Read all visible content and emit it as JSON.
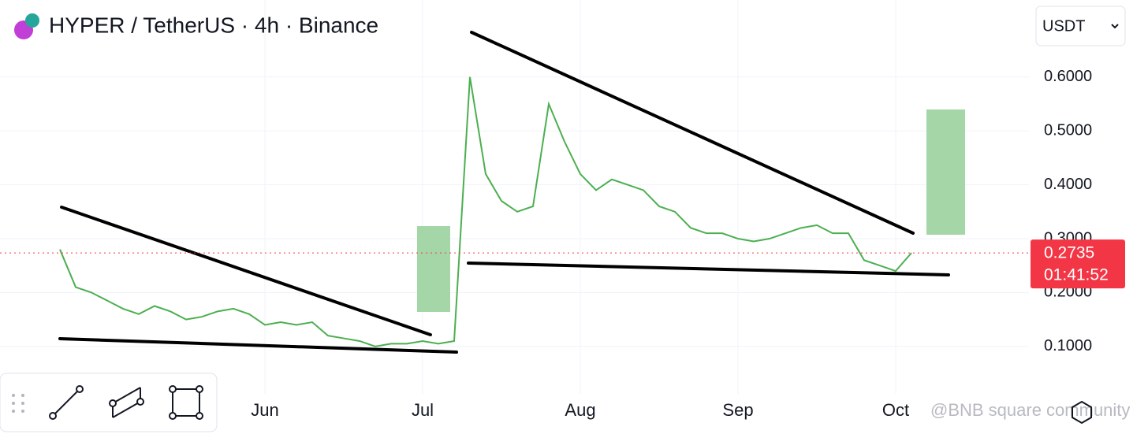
{
  "chart_data": {
    "type": "line",
    "title": "HYPER / TetherUS · 4h · Binance",
    "currency": "USDT",
    "categories": [
      null,
      null,
      null,
      null,
      null,
      null,
      null,
      null,
      null,
      null,
      null,
      null,
      null,
      "Jun",
      null,
      null,
      null,
      null,
      null,
      null,
      null,
      null,
      null,
      "Jul",
      null,
      null,
      null,
      null,
      null,
      null,
      null,
      null,
      null,
      "Aug",
      null,
      null,
      null,
      null,
      null,
      null,
      null,
      null,
      null,
      "Sep",
      null,
      null,
      null,
      null,
      null,
      null,
      null,
      null,
      null,
      "Oct",
      null
    ],
    "series": [
      {
        "name": "HYPER",
        "color": "#4caf50",
        "values": [
          0.28,
          0.21,
          0.2,
          0.185,
          0.17,
          0.16,
          0.175,
          0.165,
          0.15,
          0.155,
          0.165,
          0.17,
          0.16,
          0.14,
          0.145,
          0.14,
          0.145,
          0.12,
          0.115,
          0.11,
          0.1,
          0.105,
          0.105,
          0.11,
          0.105,
          0.11,
          0.6,
          0.42,
          0.37,
          0.35,
          0.36,
          0.55,
          0.48,
          0.42,
          0.39,
          0.41,
          0.4,
          0.39,
          0.36,
          0.35,
          0.32,
          0.31,
          0.31,
          0.3,
          0.295,
          0.3,
          0.31,
          0.32,
          0.325,
          0.31,
          0.31,
          0.26,
          0.25,
          0.24,
          0.2735
        ]
      }
    ],
    "ylim": [
      0.012,
      0.743
    ],
    "yticks": [
      {
        "value": 0.1,
        "label": "0.1000"
      },
      {
        "value": 0.2,
        "label": "0.2000"
      },
      {
        "value": 0.3,
        "label": "0.3000"
      },
      {
        "value": 0.4,
        "label": "0.4000"
      },
      {
        "value": 0.5,
        "label": "0.5000"
      },
      {
        "value": 0.6,
        "label": "0.6000"
      }
    ],
    "grid": true,
    "last_price": {
      "value": 0.2735,
      "label": "0.2735"
    },
    "countdown": "01:41:52",
    "watermark": "@BNB square community"
  }
}
